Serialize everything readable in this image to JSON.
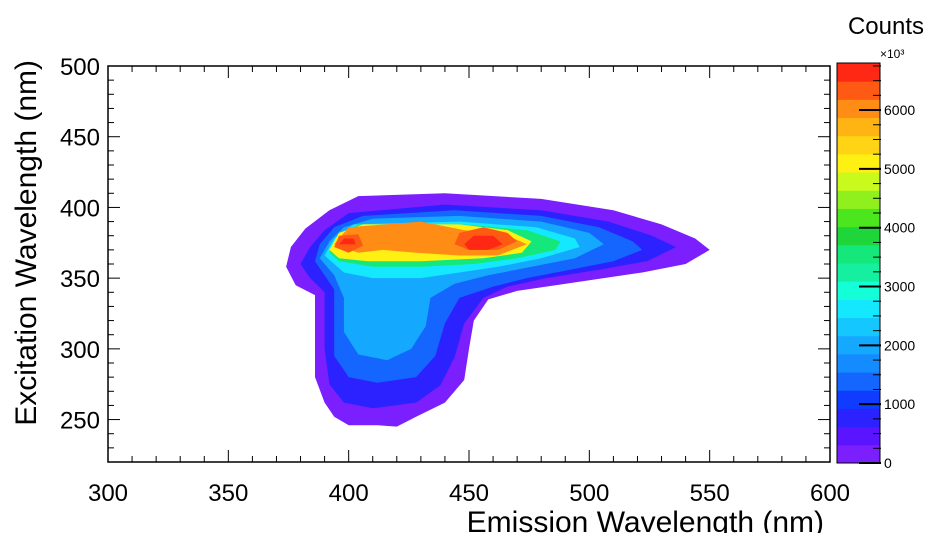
{
  "chart_data": {
    "type": "heatmap",
    "subtype": "filled-contour",
    "title": "",
    "xlabel": "Emission Wavelength (nm)",
    "ylabel": "Excitation Wavelength (nm)",
    "xlim": [
      300,
      600
    ],
    "ylim": [
      220,
      500
    ],
    "x_ticks": [
      "300",
      "350",
      "400",
      "450",
      "500",
      "550",
      "600"
    ],
    "y_ticks": [
      "250",
      "300",
      "350",
      "400",
      "450",
      "500"
    ],
    "colorbar": {
      "title": "Counts",
      "multiplier": "×10³",
      "range": [
        0,
        6800
      ],
      "ticks": [
        "0",
        "1000",
        "2000",
        "3000",
        "4000",
        "5000",
        "6000"
      ],
      "colors": [
        "#7b1fff",
        "#5a14ff",
        "#2b22ff",
        "#0f3cff",
        "#1466ff",
        "#148cff",
        "#14a8ff",
        "#14c8ff",
        "#14e8ff",
        "#14ffd8",
        "#14f0a0",
        "#14e87a",
        "#1ed63a",
        "#4ce61e",
        "#90f01e",
        "#c8fa1e",
        "#fff014",
        "#ffd414",
        "#ffb414",
        "#ff8c14",
        "#ff5a14",
        "#ff2814"
      ]
    },
    "contours": [
      {
        "min_counts": 0,
        "color": "#7b1fff",
        "points": [
          [
            374,
            358
          ],
          [
            376,
            372
          ],
          [
            382,
            385
          ],
          [
            392,
            398
          ],
          [
            404,
            408
          ],
          [
            440,
            410
          ],
          [
            480,
            406
          ],
          [
            510,
            398
          ],
          [
            530,
            388
          ],
          [
            544,
            378
          ],
          [
            550,
            370
          ],
          [
            540,
            360
          ],
          [
            522,
            354
          ],
          [
            506,
            350
          ],
          [
            486,
            345
          ],
          [
            470,
            341
          ],
          [
            458,
            335
          ],
          [
            452,
            320
          ],
          [
            450,
            300
          ],
          [
            448,
            278
          ],
          [
            440,
            262
          ],
          [
            428,
            252
          ],
          [
            420,
            245
          ],
          [
            412,
            246
          ],
          [
            400,
            246
          ],
          [
            394,
            252
          ],
          [
            390,
            262
          ],
          [
            386,
            280
          ],
          [
            386,
            300
          ],
          [
            386,
            320
          ],
          [
            386,
            338
          ],
          [
            378,
            345
          ]
        ]
      },
      {
        "min_counts": 300,
        "color": "#2b22ff",
        "points": [
          [
            380,
            360
          ],
          [
            384,
            372
          ],
          [
            390,
            384
          ],
          [
            400,
            396
          ],
          [
            440,
            402
          ],
          [
            480,
            398
          ],
          [
            508,
            390
          ],
          [
            526,
            380
          ],
          [
            536,
            372
          ],
          [
            524,
            362
          ],
          [
            504,
            356
          ],
          [
            482,
            350
          ],
          [
            466,
            344
          ],
          [
            456,
            336
          ],
          [
            448,
            318
          ],
          [
            444,
            294
          ],
          [
            438,
            274
          ],
          [
            428,
            262
          ],
          [
            410,
            258
          ],
          [
            398,
            262
          ],
          [
            392,
            275
          ],
          [
            390,
            300
          ],
          [
            390,
            322
          ],
          [
            390,
            340
          ],
          [
            384,
            350
          ]
        ]
      },
      {
        "min_counts": 800,
        "color": "#1466ff",
        "points": [
          [
            386,
            362
          ],
          [
            388,
            374
          ],
          [
            394,
            386
          ],
          [
            406,
            394
          ],
          [
            444,
            398
          ],
          [
            480,
            394
          ],
          [
            504,
            386
          ],
          [
            518,
            376
          ],
          [
            522,
            370
          ],
          [
            510,
            362
          ],
          [
            492,
            356
          ],
          [
            474,
            350
          ],
          [
            460,
            344
          ],
          [
            446,
            336
          ],
          [
            440,
            318
          ],
          [
            436,
            295
          ],
          [
            428,
            280
          ],
          [
            412,
            276
          ],
          [
            400,
            280
          ],
          [
            394,
            295
          ],
          [
            394,
            320
          ],
          [
            394,
            342
          ],
          [
            390,
            352
          ]
        ]
      },
      {
        "min_counts": 1600,
        "color": "#14a8ff",
        "points": [
          [
            388,
            364
          ],
          [
            392,
            376
          ],
          [
            398,
            386
          ],
          [
            410,
            392
          ],
          [
            446,
            394
          ],
          [
            480,
            390
          ],
          [
            500,
            382
          ],
          [
            506,
            374
          ],
          [
            494,
            364
          ],
          [
            476,
            358
          ],
          [
            458,
            352
          ],
          [
            444,
            346
          ],
          [
            434,
            336
          ],
          [
            432,
            316
          ],
          [
            426,
            300
          ],
          [
            416,
            292
          ],
          [
            404,
            296
          ],
          [
            398,
            312
          ],
          [
            398,
            336
          ],
          [
            394,
            352
          ]
        ]
      },
      {
        "min_counts": 2100,
        "color": "#14e8ff",
        "points": [
          [
            390,
            366
          ],
          [
            394,
            378
          ],
          [
            402,
            388
          ],
          [
            446,
            390
          ],
          [
            478,
            386
          ],
          [
            494,
            378
          ],
          [
            496,
            372
          ],
          [
            480,
            364
          ],
          [
            462,
            358
          ],
          [
            446,
            354
          ],
          [
            430,
            350
          ],
          [
            410,
            350
          ],
          [
            398,
            354
          ]
        ]
      },
      {
        "min_counts": 3300,
        "color": "#14e87a",
        "points": [
          [
            392,
            368
          ],
          [
            396,
            380
          ],
          [
            404,
            388
          ],
          [
            448,
            388
          ],
          [
            474,
            384
          ],
          [
            488,
            376
          ],
          [
            486,
            370
          ],
          [
            470,
            364
          ],
          [
            452,
            360
          ],
          [
            430,
            358
          ],
          [
            410,
            358
          ],
          [
            396,
            362
          ]
        ]
      },
      {
        "min_counts": 4600,
        "color": "#fff014",
        "points": [
          [
            392,
            370
          ],
          [
            396,
            382
          ],
          [
            406,
            388
          ],
          [
            446,
            388
          ],
          [
            466,
            384
          ],
          [
            476,
            376
          ],
          [
            472,
            368
          ],
          [
            456,
            364
          ],
          [
            430,
            362
          ],
          [
            408,
            362
          ],
          [
            396,
            364
          ]
        ]
      },
      {
        "min_counts": 5600,
        "color": "#ff8c14",
        "points": [
          [
            394,
            374
          ],
          [
            400,
            386
          ],
          [
            430,
            390
          ],
          [
            448,
            384
          ],
          [
            466,
            380
          ],
          [
            474,
            374
          ],
          [
            462,
            366
          ],
          [
            446,
            366
          ],
          [
            428,
            368
          ],
          [
            414,
            370
          ],
          [
            404,
            368
          ]
        ]
      },
      {
        "min_counts": 6000,
        "color": "#ff5a14",
        "points": [
          [
            444,
            374
          ],
          [
            446,
            382
          ],
          [
            456,
            386
          ],
          [
            466,
            382
          ],
          [
            470,
            376
          ],
          [
            462,
            370
          ],
          [
            450,
            370
          ]
        ]
      },
      {
        "min_counts": 6000,
        "color": "#ff5a14",
        "points": [
          [
            394,
            372
          ],
          [
            396,
            380
          ],
          [
            404,
            381
          ],
          [
            406,
            373
          ],
          [
            400,
            368
          ]
        ]
      },
      {
        "min_counts": 6500,
        "color": "#ff2814",
        "points": [
          [
            448,
            374
          ],
          [
            452,
            380
          ],
          [
            460,
            380
          ],
          [
            464,
            374
          ],
          [
            458,
            370
          ],
          [
            450,
            370
          ]
        ]
      },
      {
        "min_counts": 6500,
        "color": "#ff2814",
        "points": [
          [
            396,
            374
          ],
          [
            398,
            378
          ],
          [
            402,
            378
          ],
          [
            403,
            374
          ]
        ]
      }
    ]
  }
}
